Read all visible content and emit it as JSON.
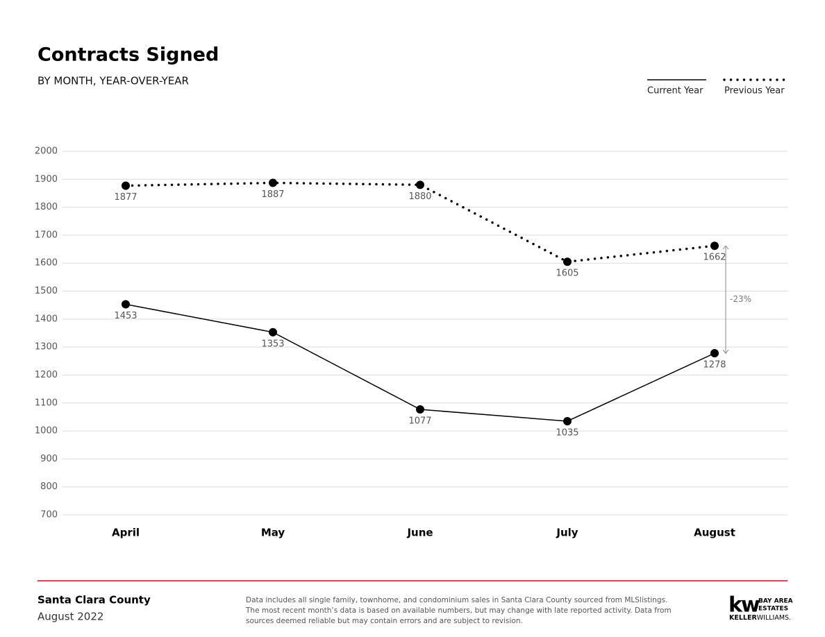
{
  "chart_data": {
    "type": "line",
    "title": "Contracts Signed",
    "subtitle": "BY MONTH, YEAR-OVER-YEAR",
    "categories": [
      "April",
      "May",
      "June",
      "July",
      "August"
    ],
    "series": [
      {
        "name": "Current Year",
        "color": "#000000",
        "line_style": "solid",
        "values": [
          1453,
          1353,
          1077,
          1035,
          1278
        ]
      },
      {
        "name": "Previous Year",
        "color": "#000000",
        "line_style": "dotted",
        "values": [
          1877,
          1887,
          1880,
          1605,
          1662
        ]
      }
    ],
    "ylim": [
      700,
      2000
    ],
    "yticks": [
      700,
      800,
      900,
      1000,
      1100,
      1200,
      1300,
      1400,
      1500,
      1600,
      1700,
      1800,
      1900,
      2000
    ],
    "grid": true,
    "legend": "top-right",
    "annotation": {
      "text": "-23%"
    }
  },
  "footer": {
    "region": "Santa Clara County",
    "date": "August 2022",
    "disclaimer": [
      "Data includes all single family, townhome, and condominium sales in Santa Clara County sourced from MLSlistings.",
      "The most recent month’s data is based on available numbers, but may change with late reported activity. Data from",
      "sources deemed reliable but may contain errors and are subject to revision."
    ],
    "logo": {
      "mark": "kw",
      "lines": [
        "BAY AREA",
        "ESTATES"
      ],
      "brand_bold": "KELLER",
      "brand_light": "WILLIAMS."
    }
  }
}
